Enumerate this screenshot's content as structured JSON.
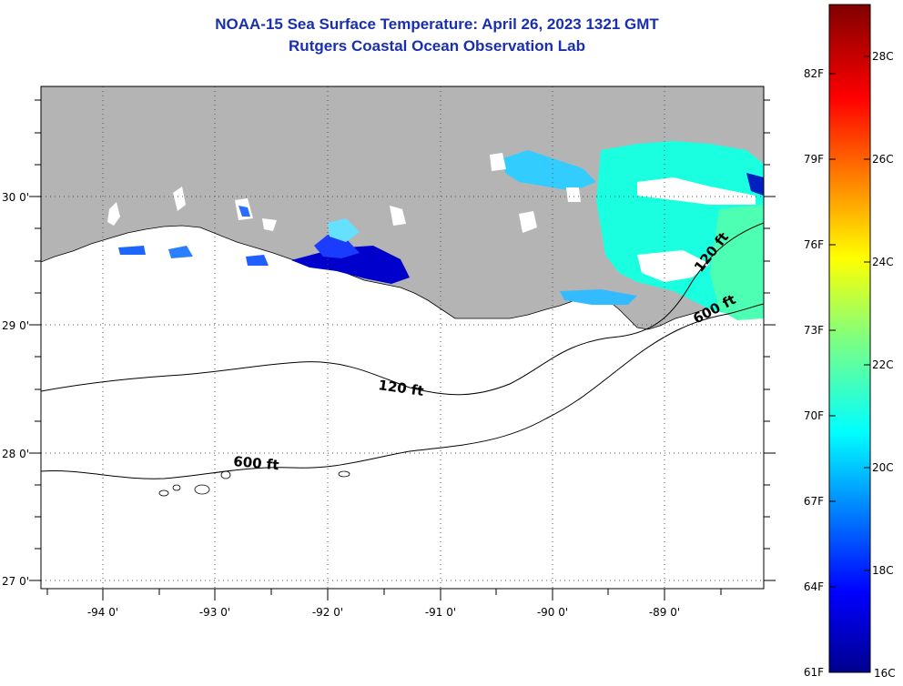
{
  "title": "NOAA-15 Sea Surface Temperature:  April 26, 2023 1321 GMT",
  "subtitle": "Rutgers Coastal Ocean Observation Lab",
  "map": {
    "lon_labels": [
      "-94 0'",
      "-93 0'",
      "-92 0'",
      "-91 0'",
      "-90 0'",
      "-89 0'"
    ],
    "lat_labels": [
      "30 0'",
      "29 0'",
      "28 0'",
      "27 0'"
    ],
    "contour_labels": [
      "120 ft",
      "600 ft",
      "120 ft",
      "600 ft"
    ],
    "land_color": "#b4b4b4",
    "grid": "dotted"
  },
  "colorbar": {
    "fahrenheit": [
      "82F",
      "79F",
      "76F",
      "73F",
      "70F",
      "67F",
      "64F",
      "61F"
    ],
    "celsius": [
      "28C",
      "26C",
      "24C",
      "22C",
      "20C",
      "18C",
      "16C"
    ]
  }
}
